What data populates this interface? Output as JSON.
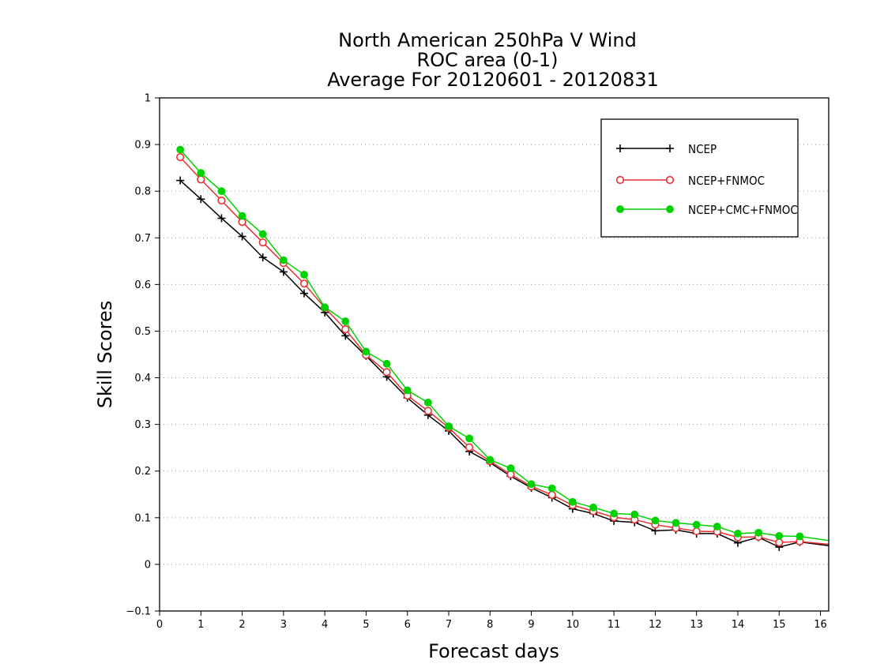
{
  "chart_data": {
    "type": "line",
    "title": [
      "North American 250hPa V Wind",
      "ROC area (0-1)",
      "Average For 20120601 - 20120831"
    ],
    "xlabel": "Forecast days",
    "ylabel": "Skill Scores",
    "xlim": [
      0,
      16.2
    ],
    "ylim": [
      -0.1,
      1
    ],
    "xticks": [
      0,
      1,
      2,
      3,
      4,
      5,
      6,
      7,
      8,
      9,
      10,
      11,
      12,
      13,
      14,
      15,
      16
    ],
    "yticks": [
      -0.1,
      0,
      0.1,
      0.2,
      0.3,
      0.4,
      0.5,
      0.6,
      0.7,
      0.8,
      0.9,
      1
    ],
    "ytick_labels": [
      "−0.1",
      "0",
      "0.1",
      "0.2",
      "0.3",
      "0.4",
      "0.5",
      "0.6",
      "0.7",
      "0.8",
      "0.9",
      "1"
    ],
    "grid": "horizontal dotted",
    "legend_position": "top-right",
    "x": [
      0.5,
      1,
      1.5,
      2,
      2.5,
      3,
      3.5,
      4,
      4.5,
      5,
      5.5,
      6,
      6.5,
      7,
      7.5,
      8,
      8.5,
      9,
      9.5,
      10,
      10.5,
      11,
      11.5,
      12,
      12.5,
      13,
      13.5,
      14,
      14.5,
      15,
      15.5,
      16.2
    ],
    "series": [
      {
        "name": "NCEP",
        "color": "#000000",
        "marker": "plus",
        "values": [
          0.823,
          0.783,
          0.742,
          0.703,
          0.658,
          0.627,
          0.581,
          0.54,
          0.49,
          0.447,
          0.402,
          0.357,
          0.32,
          0.286,
          0.242,
          0.218,
          0.189,
          0.164,
          0.143,
          0.119,
          0.109,
          0.093,
          0.09,
          0.072,
          0.074,
          0.066,
          0.066,
          0.046,
          0.058,
          0.037,
          0.048,
          0.04
        ]
      },
      {
        "name": "NCEP+FNMOC",
        "color": "#e83030",
        "marker": "open-circle",
        "values": [
          0.873,
          0.825,
          0.78,
          0.734,
          0.69,
          0.646,
          0.602,
          0.55,
          0.504,
          0.449,
          0.412,
          0.362,
          0.329,
          0.293,
          0.251,
          0.221,
          0.193,
          0.167,
          0.149,
          0.127,
          0.114,
          0.101,
          0.096,
          0.085,
          0.078,
          0.071,
          0.07,
          0.058,
          0.059,
          0.047,
          0.049,
          0.043
        ]
      },
      {
        "name": "NCEP+CMC+FNMOC",
        "color": "#00d200",
        "marker": "filled-circle",
        "values": [
          0.889,
          0.839,
          0.8,
          0.747,
          0.708,
          0.652,
          0.621,
          0.551,
          0.521,
          0.456,
          0.43,
          0.373,
          0.347,
          0.296,
          0.27,
          0.224,
          0.206,
          0.172,
          0.163,
          0.134,
          0.122,
          0.109,
          0.107,
          0.094,
          0.089,
          0.085,
          0.081,
          0.066,
          0.068,
          0.061,
          0.06,
          0.051
        ]
      }
    ]
  }
}
